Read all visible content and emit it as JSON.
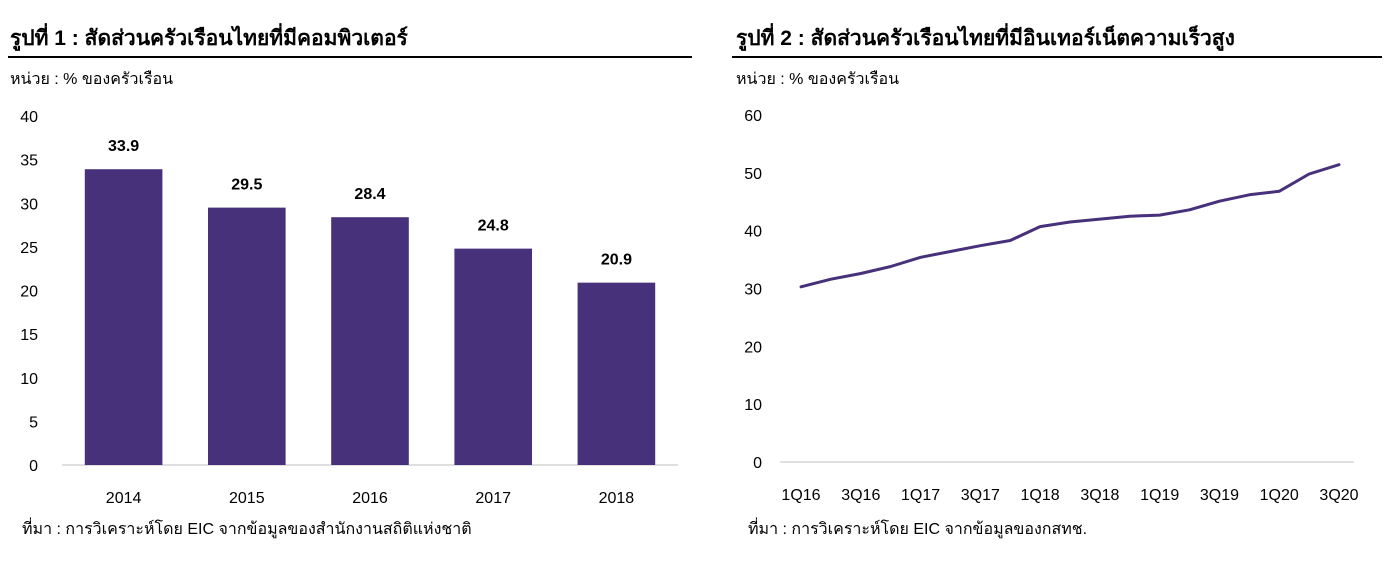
{
  "chart_data": [
    {
      "type": "bar",
      "title": "รูปที่ 1 : สัดส่วนครัวเรือนไทยที่มีคอมพิวเตอร์",
      "unit": "หน่วย : % ของครัวเรือน",
      "source": "ที่มา : การวิเคราะห์โดย EIC จากข้อมูลของสำนักงานสถิติแห่งชาติ",
      "categories": [
        "2014",
        "2015",
        "2016",
        "2017",
        "2018"
      ],
      "values": [
        33.9,
        29.5,
        28.4,
        24.8,
        20.9
      ],
      "data_labels": [
        "33.9",
        "29.5",
        "28.4",
        "24.8",
        "20.9"
      ],
      "ylim": [
        0,
        40
      ],
      "yticks": [
        "0",
        "5",
        "10",
        "15",
        "20",
        "25",
        "30",
        "35",
        "40"
      ],
      "grid": false,
      "color": "#47317a"
    },
    {
      "type": "line",
      "title": "รูปที่ 2 : สัดส่วนครัวเรือนไทยที่มีอินเทอร์เน็ตความเร็วสูง",
      "unit": "หน่วย : % ของครัวเรือน",
      "source": "ที่มา : การวิเคราะห์โดย EIC จากข้อมูลของกสทช.",
      "x": [
        "1Q16",
        "2Q16",
        "3Q16",
        "4Q16",
        "1Q17",
        "2Q17",
        "3Q17",
        "4Q17",
        "1Q18",
        "2Q18",
        "3Q18",
        "4Q18",
        "1Q19",
        "2Q19",
        "3Q19",
        "4Q19",
        "1Q20",
        "2Q20",
        "3Q20"
      ],
      "xticks": [
        "1Q16",
        "3Q16",
        "1Q17",
        "3Q17",
        "1Q18",
        "3Q18",
        "1Q19",
        "3Q19",
        "1Q20",
        "3Q20"
      ],
      "values": [
        30.3,
        31.6,
        32.6,
        33.8,
        35.4,
        36.4,
        37.4,
        38.3,
        40.7,
        41.5,
        42.0,
        42.5,
        42.7,
        43.6,
        45.1,
        46.2,
        46.8,
        49.8,
        51.4
      ],
      "ylim": [
        0,
        60
      ],
      "yticks": [
        "0",
        "10",
        "20",
        "30",
        "40",
        "50",
        "60"
      ],
      "grid": false,
      "color": "#47317a"
    }
  ]
}
